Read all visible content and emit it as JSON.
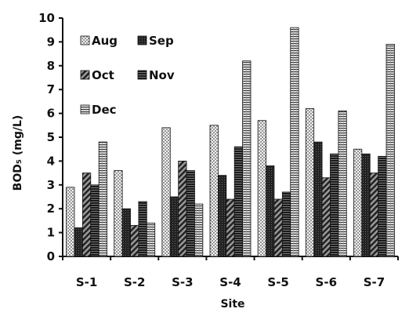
{
  "chart_data": {
    "type": "bar",
    "title": "",
    "xlabel": "Site",
    "ylabel": "BOD₅ (mg/L)",
    "ylim": [
      0,
      10
    ],
    "yticks": [
      "0",
      "1",
      "2",
      "3",
      "4",
      "5",
      "6",
      "7",
      "8",
      "9",
      "10"
    ],
    "grid": false,
    "legend_position": "top-left",
    "categories": [
      "S-1",
      "S-2",
      "S-3",
      "S-4",
      "S-5",
      "S-6",
      "S-7"
    ],
    "series": [
      {
        "name": "Aug",
        "pattern": "dots",
        "values": [
          2.9,
          3.6,
          5.4,
          5.5,
          5.7,
          6.2,
          4.5
        ]
      },
      {
        "name": "Sep",
        "pattern": "dark",
        "values": [
          1.2,
          2.0,
          2.5,
          3.4,
          3.8,
          4.8,
          4.3
        ]
      },
      {
        "name": "Oct",
        "pattern": "diag",
        "values": [
          3.5,
          1.3,
          4.0,
          2.4,
          2.4,
          3.3,
          3.5
        ]
      },
      {
        "name": "Nov",
        "pattern": "hbars",
        "values": [
          3.0,
          2.3,
          3.6,
          4.6,
          2.7,
          4.3,
          4.2
        ]
      },
      {
        "name": "Dec",
        "pattern": "hlines",
        "values": [
          4.8,
          1.4,
          2.2,
          8.2,
          9.6,
          6.1,
          8.9
        ]
      }
    ]
  }
}
